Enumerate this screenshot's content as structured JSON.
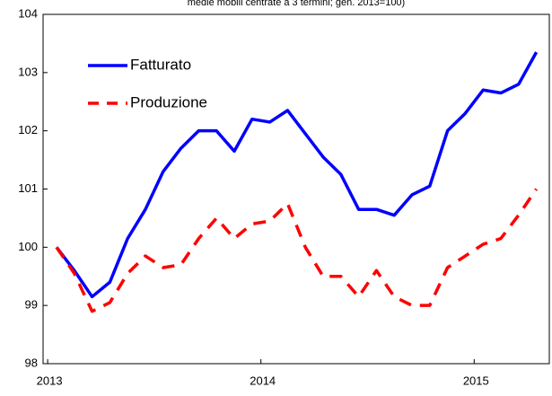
{
  "chart_data": {
    "type": "line",
    "title": "medie mobili centrate a 3 termini; gen. 2013=100)",
    "categories": [
      "2013",
      null,
      null,
      null,
      null,
      null,
      null,
      null,
      null,
      null,
      null,
      null,
      "2014",
      null,
      null,
      null,
      null,
      null,
      null,
      null,
      null,
      null,
      null,
      null,
      "2015",
      null,
      null,
      null
    ],
    "series": [
      {
        "name": "Fatturato",
        "color": "#0000ff",
        "dash": false,
        "values": [
          100,
          99.6,
          99.15,
          99.4,
          100.15,
          100.65,
          101.3,
          101.7,
          102.0,
          102.0,
          101.65,
          102.2,
          102.15,
          102.35,
          101.95,
          101.55,
          101.25,
          100.65,
          100.65,
          100.55,
          100.9,
          101.05,
          102.0,
          102.3,
          102.7,
          102.65,
          102.8,
          103.35
        ]
      },
      {
        "name": "Produzione",
        "color": "#ff0000",
        "dash": true,
        "values": [
          100,
          99.55,
          98.9,
          99.05,
          99.55,
          99.85,
          99.65,
          99.7,
          100.15,
          100.5,
          100.15,
          100.4,
          100.45,
          100.75,
          100.0,
          99.5,
          99.5,
          99.15,
          99.6,
          99.15,
          99.0,
          99.0,
          99.65,
          99.85,
          100.05,
          100.15,
          100.55,
          101.0
        ]
      }
    ],
    "ylim": [
      98,
      104
    ],
    "yticks": [
      98,
      99,
      100,
      101,
      102,
      103,
      104
    ],
    "grid": false,
    "legend": "upper left"
  }
}
